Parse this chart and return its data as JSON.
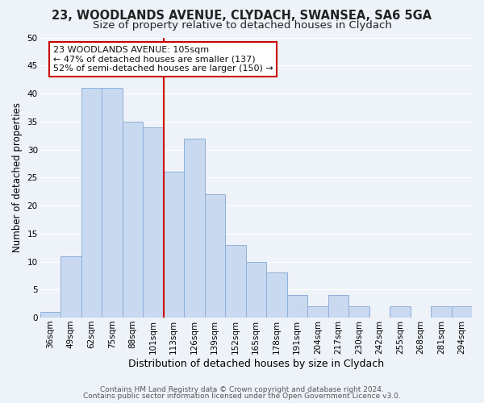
{
  "title1": "23, WOODLANDS AVENUE, CLYDACH, SWANSEA, SA6 5GA",
  "title2": "Size of property relative to detached houses in Clydach",
  "xlabel": "Distribution of detached houses by size in Clydach",
  "ylabel": "Number of detached properties",
  "bar_labels": [
    "36sqm",
    "49sqm",
    "62sqm",
    "75sqm",
    "88sqm",
    "101sqm",
    "113sqm",
    "126sqm",
    "139sqm",
    "152sqm",
    "165sqm",
    "178sqm",
    "191sqm",
    "204sqm",
    "217sqm",
    "230sqm",
    "242sqm",
    "255sqm",
    "268sqm",
    "281sqm",
    "294sqm"
  ],
  "bar_values": [
    1,
    11,
    41,
    41,
    35,
    34,
    26,
    32,
    22,
    13,
    10,
    8,
    4,
    2,
    4,
    2,
    0,
    2,
    0,
    2,
    2
  ],
  "bar_color": "#c8d9f0",
  "bar_edge_color": "#8fb0d8",
  "vline_index": 5,
  "vline_color": "#cc0000",
  "annotation_title": "23 WOODLANDS AVENUE: 105sqm",
  "annotation_line1": "← 47% of detached houses are smaller (137)",
  "annotation_line2": "52% of semi-detached houses are larger (150) →",
  "annotation_box_color": "#ffffff",
  "annotation_box_edge": "#cc0000",
  "ylim": [
    0,
    50
  ],
  "yticks": [
    0,
    5,
    10,
    15,
    20,
    25,
    30,
    35,
    40,
    45,
    50
  ],
  "footer1": "Contains HM Land Registry data © Crown copyright and database right 2024.",
  "footer2": "Contains public sector information licensed under the Open Government Licence v3.0.",
  "bg_color": "#eef2f9",
  "plot_bg_color": "#eef2f9",
  "grid_color": "#ffffff",
  "title1_fontsize": 10.5,
  "title2_fontsize": 9.5,
  "xlabel_fontsize": 9,
  "ylabel_fontsize": 8.5,
  "tick_fontsize": 7.5,
  "annotation_fontsize": 8,
  "footer_fontsize": 6.5
}
